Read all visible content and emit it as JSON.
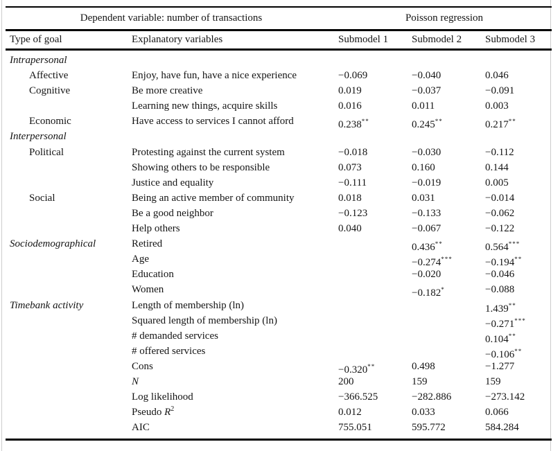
{
  "colors": {
    "text": "#141414",
    "rule": "#000000",
    "background": "#ffffff",
    "edge_line": "#cccccc"
  },
  "table": {
    "header": {
      "left_title": "Dependent variable: number of transactions",
      "right_title": "Poisson regression"
    },
    "columns": [
      "Type of goal",
      "Explanatory variables",
      "Submodel 1",
      "Submodel 2",
      "Submodel 3"
    ],
    "rows": [
      {
        "goal": "Intrapersonal",
        "goal_italic": true,
        "variable": "",
        "values": [
          {},
          {},
          {}
        ]
      },
      {
        "goal": "Affective",
        "indent": true,
        "variable": "Enjoy, have fun, have a nice experience",
        "values": [
          {
            "v": "−0.069"
          },
          {
            "v": "−0.040"
          },
          {
            "v": "0.046"
          }
        ]
      },
      {
        "goal": "Cognitive",
        "indent": true,
        "variable": "Be more creative",
        "values": [
          {
            "v": "0.019"
          },
          {
            "v": "−0.037"
          },
          {
            "v": "−0.091"
          }
        ]
      },
      {
        "goal": "",
        "variable": "Learning new things, acquire skills",
        "values": [
          {
            "v": "0.016"
          },
          {
            "v": "0.011"
          },
          {
            "v": "0.003"
          }
        ]
      },
      {
        "goal": "Economic",
        "indent": true,
        "variable": "Have access to services I cannot afford",
        "values": [
          {
            "v": "0.238",
            "s": "**"
          },
          {
            "v": "0.245",
            "s": "**"
          },
          {
            "v": "0.217",
            "s": "**"
          }
        ]
      },
      {
        "goal": "Interpersonal",
        "goal_italic": true,
        "variable": "",
        "values": [
          {},
          {},
          {}
        ]
      },
      {
        "goal": "Political",
        "indent": true,
        "variable": "Protesting against the current system",
        "values": [
          {
            "v": "−0.018"
          },
          {
            "v": "−0.030"
          },
          {
            "v": "−0.112"
          }
        ]
      },
      {
        "goal": "",
        "variable": "Showing others to be responsible",
        "values": [
          {
            "v": "0.073"
          },
          {
            "v": "0.160"
          },
          {
            "v": "0.144"
          }
        ]
      },
      {
        "goal": "",
        "variable": "Justice and equality",
        "values": [
          {
            "v": "−0.111"
          },
          {
            "v": "−0.019"
          },
          {
            "v": "0.005"
          }
        ]
      },
      {
        "goal": "Social",
        "indent": true,
        "variable": "Being an active member of community",
        "values": [
          {
            "v": "0.018"
          },
          {
            "v": "0.031"
          },
          {
            "v": "−0.014"
          }
        ]
      },
      {
        "goal": "",
        "variable": "Be a good neighbor",
        "values": [
          {
            "v": "−0.123"
          },
          {
            "v": "−0.133"
          },
          {
            "v": "−0.062"
          }
        ]
      },
      {
        "goal": "",
        "variable": "Help others",
        "values": [
          {
            "v": "0.040"
          },
          {
            "v": "−0.067"
          },
          {
            "v": "−0.122"
          }
        ]
      },
      {
        "goal": "Sociodemographical",
        "goal_italic": true,
        "variable": "Retired",
        "values": [
          {},
          {
            "v": "0.436",
            "s": "**"
          },
          {
            "v": "0.564",
            "s": "***"
          }
        ]
      },
      {
        "goal": "",
        "variable": "Age",
        "values": [
          {},
          {
            "v": "−0.274",
            "s": "***"
          },
          {
            "v": "−0.194",
            "s": "**"
          }
        ]
      },
      {
        "goal": "",
        "variable": "Education",
        "values": [
          {},
          {
            "v": "−0.020"
          },
          {
            "v": "−0.046"
          }
        ]
      },
      {
        "goal": "",
        "variable": "Women",
        "values": [
          {},
          {
            "v": "−0.182",
            "s": "*"
          },
          {
            "v": "−0.088"
          }
        ]
      },
      {
        "goal": "Timebank activity",
        "goal_italic": true,
        "variable": "Length of membership (ln)",
        "values": [
          {},
          {},
          {
            "v": "1.439",
            "s": "**"
          }
        ]
      },
      {
        "goal": "",
        "variable": "Squared length of membership (ln)",
        "values": [
          {},
          {},
          {
            "v": "−0.271",
            "s": "***"
          }
        ]
      },
      {
        "goal": "",
        "variable": "# demanded services",
        "values": [
          {},
          {},
          {
            "v": "0.104",
            "s": "**"
          }
        ]
      },
      {
        "goal": "",
        "variable": "# offered services",
        "values": [
          {},
          {},
          {
            "v": "−0.106",
            "s": "**"
          }
        ]
      },
      {
        "goal": "",
        "variable": "Cons",
        "values": [
          {
            "v": "−0.320",
            "s": "**"
          },
          {
            "v": "0.498"
          },
          {
            "v": "−1.277"
          }
        ]
      },
      {
        "goal": "",
        "variable": "N",
        "variable_italic": true,
        "values": [
          {
            "v": "200"
          },
          {
            "v": "159"
          },
          {
            "v": "159"
          }
        ]
      },
      {
        "goal": "",
        "variable": "Log likelihood",
        "values": [
          {
            "v": "−366.525"
          },
          {
            "v": "−282.886"
          },
          {
            "v": "−273.142"
          }
        ]
      },
      {
        "goal": "",
        "variable_parts": [
          {
            "t": "Pseudo "
          },
          {
            "t": "R",
            "i": true
          },
          {
            "t": "2",
            "sup": true
          }
        ],
        "values": [
          {
            "v": "0.012"
          },
          {
            "v": "0.033"
          },
          {
            "v": "0.066"
          }
        ]
      },
      {
        "goal": "",
        "variable": "AIC",
        "values": [
          {
            "v": "755.051"
          },
          {
            "v": "595.772"
          },
          {
            "v": "584.284"
          }
        ]
      }
    ]
  }
}
